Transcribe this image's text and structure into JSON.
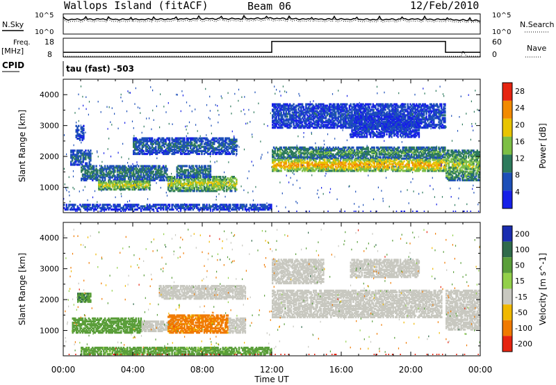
{
  "header": {
    "station": "Wallops Island (fitACF)",
    "beam": "Beam 06",
    "date": "12/Feb/2010"
  },
  "panels": {
    "nsky_label": "N.Sky",
    "nsearch_label": "N.Search",
    "nsky_ticks": [
      "10^5",
      "10^0"
    ],
    "nsearch_ticks": [
      "10^5",
      "10^0"
    ],
    "freq_label": "Freq.",
    "freq_unit": "[MHz]",
    "freq_ticks": [
      "18",
      "8"
    ],
    "nave_label": "Nave",
    "nave_ticks": [
      "60",
      "0"
    ],
    "cpid_label": "CPID",
    "cpid_value": "tau (fast) -503"
  },
  "chart_data": [
    {
      "type": "line",
      "name": "noise",
      "ylim_log10": [
        0,
        5
      ],
      "x": [
        0,
        2,
        4,
        6,
        8,
        10,
        12,
        14,
        16,
        18,
        20,
        22,
        24
      ],
      "n_sky_log10": [
        3.6,
        3.7,
        3.6,
        3.7,
        3.8,
        3.8,
        3.9,
        3.7,
        3.7,
        3.6,
        3.7,
        3.6,
        3.3
      ],
      "n_search_log10": [
        3.1,
        3.2,
        3.1,
        3.2,
        3.3,
        3.3,
        3.4,
        3.2,
        3.2,
        3.1,
        3.2,
        3.1,
        2.9
      ]
    },
    {
      "type": "line",
      "name": "frequency-nave",
      "freq_ylim": [
        8,
        18
      ],
      "nave_ylim": [
        0,
        60
      ],
      "freq_steps": [
        [
          0,
          12,
          10.5
        ],
        [
          12,
          22,
          16.3
        ],
        [
          22,
          24,
          10.5
        ]
      ],
      "nave_points": [
        [
          0,
          2
        ],
        [
          22.9,
          2
        ],
        [
          23.0,
          20
        ],
        [
          23.2,
          3
        ],
        [
          24,
          2
        ]
      ]
    },
    {
      "type": "heatmap",
      "title": "Power",
      "xlabel": "Time UT",
      "ylabel": "Slant Range [km]",
      "xlim": [
        0,
        24
      ],
      "ylim": [
        180,
        4500
      ],
      "x_ticks": [
        "00:00",
        "04:00",
        "08:00",
        "12:00",
        "16:00",
        "20:00",
        "00:00"
      ],
      "y_ticks": [
        1000,
        2000,
        3000,
        4000
      ],
      "colorbar_label": "Power [dB]",
      "colorbar_ticks": [
        4,
        8,
        12,
        16,
        20,
        24,
        28
      ],
      "colorbar_range": [
        0,
        30
      ],
      "colorbar_colors": [
        "#1620e8",
        "#1d4fb8",
        "#2d7a5c",
        "#7dbf45",
        "#e8c400",
        "#f28a00",
        "#e62410"
      ],
      "regions": [
        {
          "t": [
            0.4,
            1.6
          ],
          "r": [
            1700,
            2200
          ],
          "v": 8
        },
        {
          "t": [
            0.7,
            1.2
          ],
          "r": [
            2500,
            3000
          ],
          "v": 6
        },
        {
          "t": [
            1.0,
            6.0
          ],
          "r": [
            1200,
            1700
          ],
          "v": 10
        },
        {
          "t": [
            2.0,
            5.0
          ],
          "r": [
            900,
            1200
          ],
          "v": 18
        },
        {
          "t": [
            4.0,
            10.0
          ],
          "r": [
            2050,
            2600
          ],
          "v": 8
        },
        {
          "t": [
            6.0,
            10.0
          ],
          "r": [
            850,
            1350
          ],
          "v": 17
        },
        {
          "t": [
            6.5,
            8.5
          ],
          "r": [
            1300,
            1700
          ],
          "v": 10
        },
        {
          "t": [
            12.0,
            22.0
          ],
          "r": [
            1900,
            2300
          ],
          "v": 12
        },
        {
          "t": [
            12.0,
            22.0
          ],
          "r": [
            1500,
            1900
          ],
          "v": 22
        },
        {
          "t": [
            12.0,
            22.0
          ],
          "r": [
            2900,
            3700
          ],
          "v": 6
        },
        {
          "t": [
            16.5,
            20.5
          ],
          "r": [
            2600,
            3300
          ],
          "v": 5
        },
        {
          "t": [
            22.0,
            24.0
          ],
          "r": [
            1200,
            2200
          ],
          "v": 15
        },
        {
          "t": [
            0.0,
            12.0
          ],
          "r": [
            250,
            450
          ],
          "v": 6
        }
      ]
    },
    {
      "type": "heatmap",
      "title": "Velocity",
      "xlabel": "Time UT",
      "ylabel": "Slant Range [km]",
      "xlim": [
        0,
        24
      ],
      "ylim": [
        180,
        4500
      ],
      "x_ticks": [
        "00:00",
        "04:00",
        "08:00",
        "12:00",
        "16:00",
        "20:00",
        "00:00"
      ],
      "y_ticks": [
        1000,
        2000,
        3000,
        4000
      ],
      "colorbar_label": "Velocity [m s^-1]",
      "colorbar_ticks": [
        "200",
        "100",
        "50",
        "15",
        "-15",
        "-50",
        "-100",
        "-200"
      ],
      "colorbar_colors": [
        "#1a2db0",
        "#2f6a4a",
        "#5a9e3a",
        "#93d04a",
        "#c8c8c0",
        "#f0b800",
        "#f07a00",
        "#e62410"
      ],
      "regions": [
        {
          "t": [
            0.5,
            4.5
          ],
          "r": [
            900,
            1400
          ],
          "v": 60
        },
        {
          "t": [
            0.8,
            1.6
          ],
          "r": [
            1900,
            2200
          ],
          "v": 70
        },
        {
          "t": [
            4.5,
            6.5
          ],
          "r": [
            950,
            1300
          ],
          "v": 0
        },
        {
          "t": [
            5.5,
            10.5
          ],
          "r": [
            2000,
            2450
          ],
          "v": 0
        },
        {
          "t": [
            6.0,
            9.5
          ],
          "r": [
            900,
            1500
          ],
          "v": -40
        },
        {
          "t": [
            9.5,
            10.5
          ],
          "r": [
            900,
            1400
          ],
          "v": 0
        },
        {
          "t": [
            12.0,
            21.8
          ],
          "r": [
            1400,
            2300
          ],
          "v": 0
        },
        {
          "t": [
            12.0,
            15.0
          ],
          "r": [
            2500,
            3300
          ],
          "v": 0
        },
        {
          "t": [
            16.5,
            20.5
          ],
          "r": [
            2700,
            3300
          ],
          "v": 0
        },
        {
          "t": [
            22.0,
            24.0
          ],
          "r": [
            1000,
            2300
          ],
          "v": 0
        },
        {
          "t": [
            1.0,
            12.0
          ],
          "r": [
            200,
            450
          ],
          "v": 40
        }
      ]
    }
  ]
}
